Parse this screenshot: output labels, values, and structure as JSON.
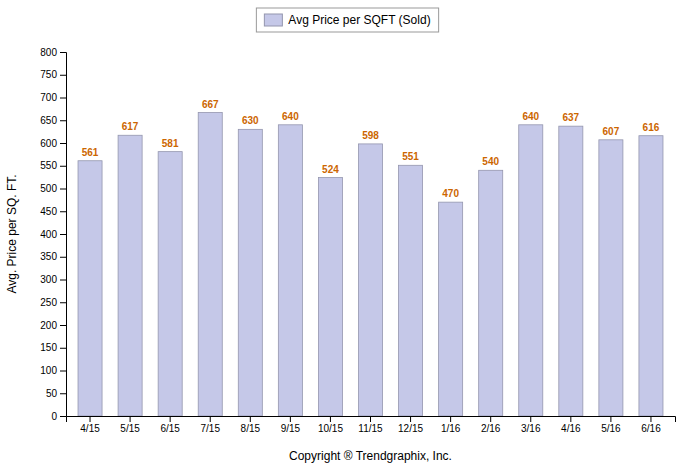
{
  "chart_data": {
    "type": "bar",
    "categories": [
      "4/15",
      "5/15",
      "6/15",
      "7/15",
      "8/15",
      "9/15",
      "10/15",
      "11/15",
      "12/15",
      "1/16",
      "2/16",
      "3/16",
      "4/16",
      "5/16",
      "6/16"
    ],
    "series": [
      {
        "name": "Avg Price per SQFT (Sold)",
        "color": "#c5c8e8",
        "values": [
          561,
          617,
          581,
          667,
          630,
          640,
          524,
          598,
          551,
          470,
          540,
          640,
          637,
          607,
          616
        ]
      }
    ],
    "xlabel": "Copyright ® Trendgraphix, Inc.",
    "ylabel": "Avg. Price per SQ. FT.",
    "ylim": [
      0,
      800
    ],
    "yticks": [
      0,
      50,
      100,
      150,
      200,
      250,
      300,
      350,
      400,
      450,
      500,
      550,
      600,
      650,
      700,
      750,
      800
    ],
    "grid": false,
    "legend": "top",
    "data_labels": true
  }
}
